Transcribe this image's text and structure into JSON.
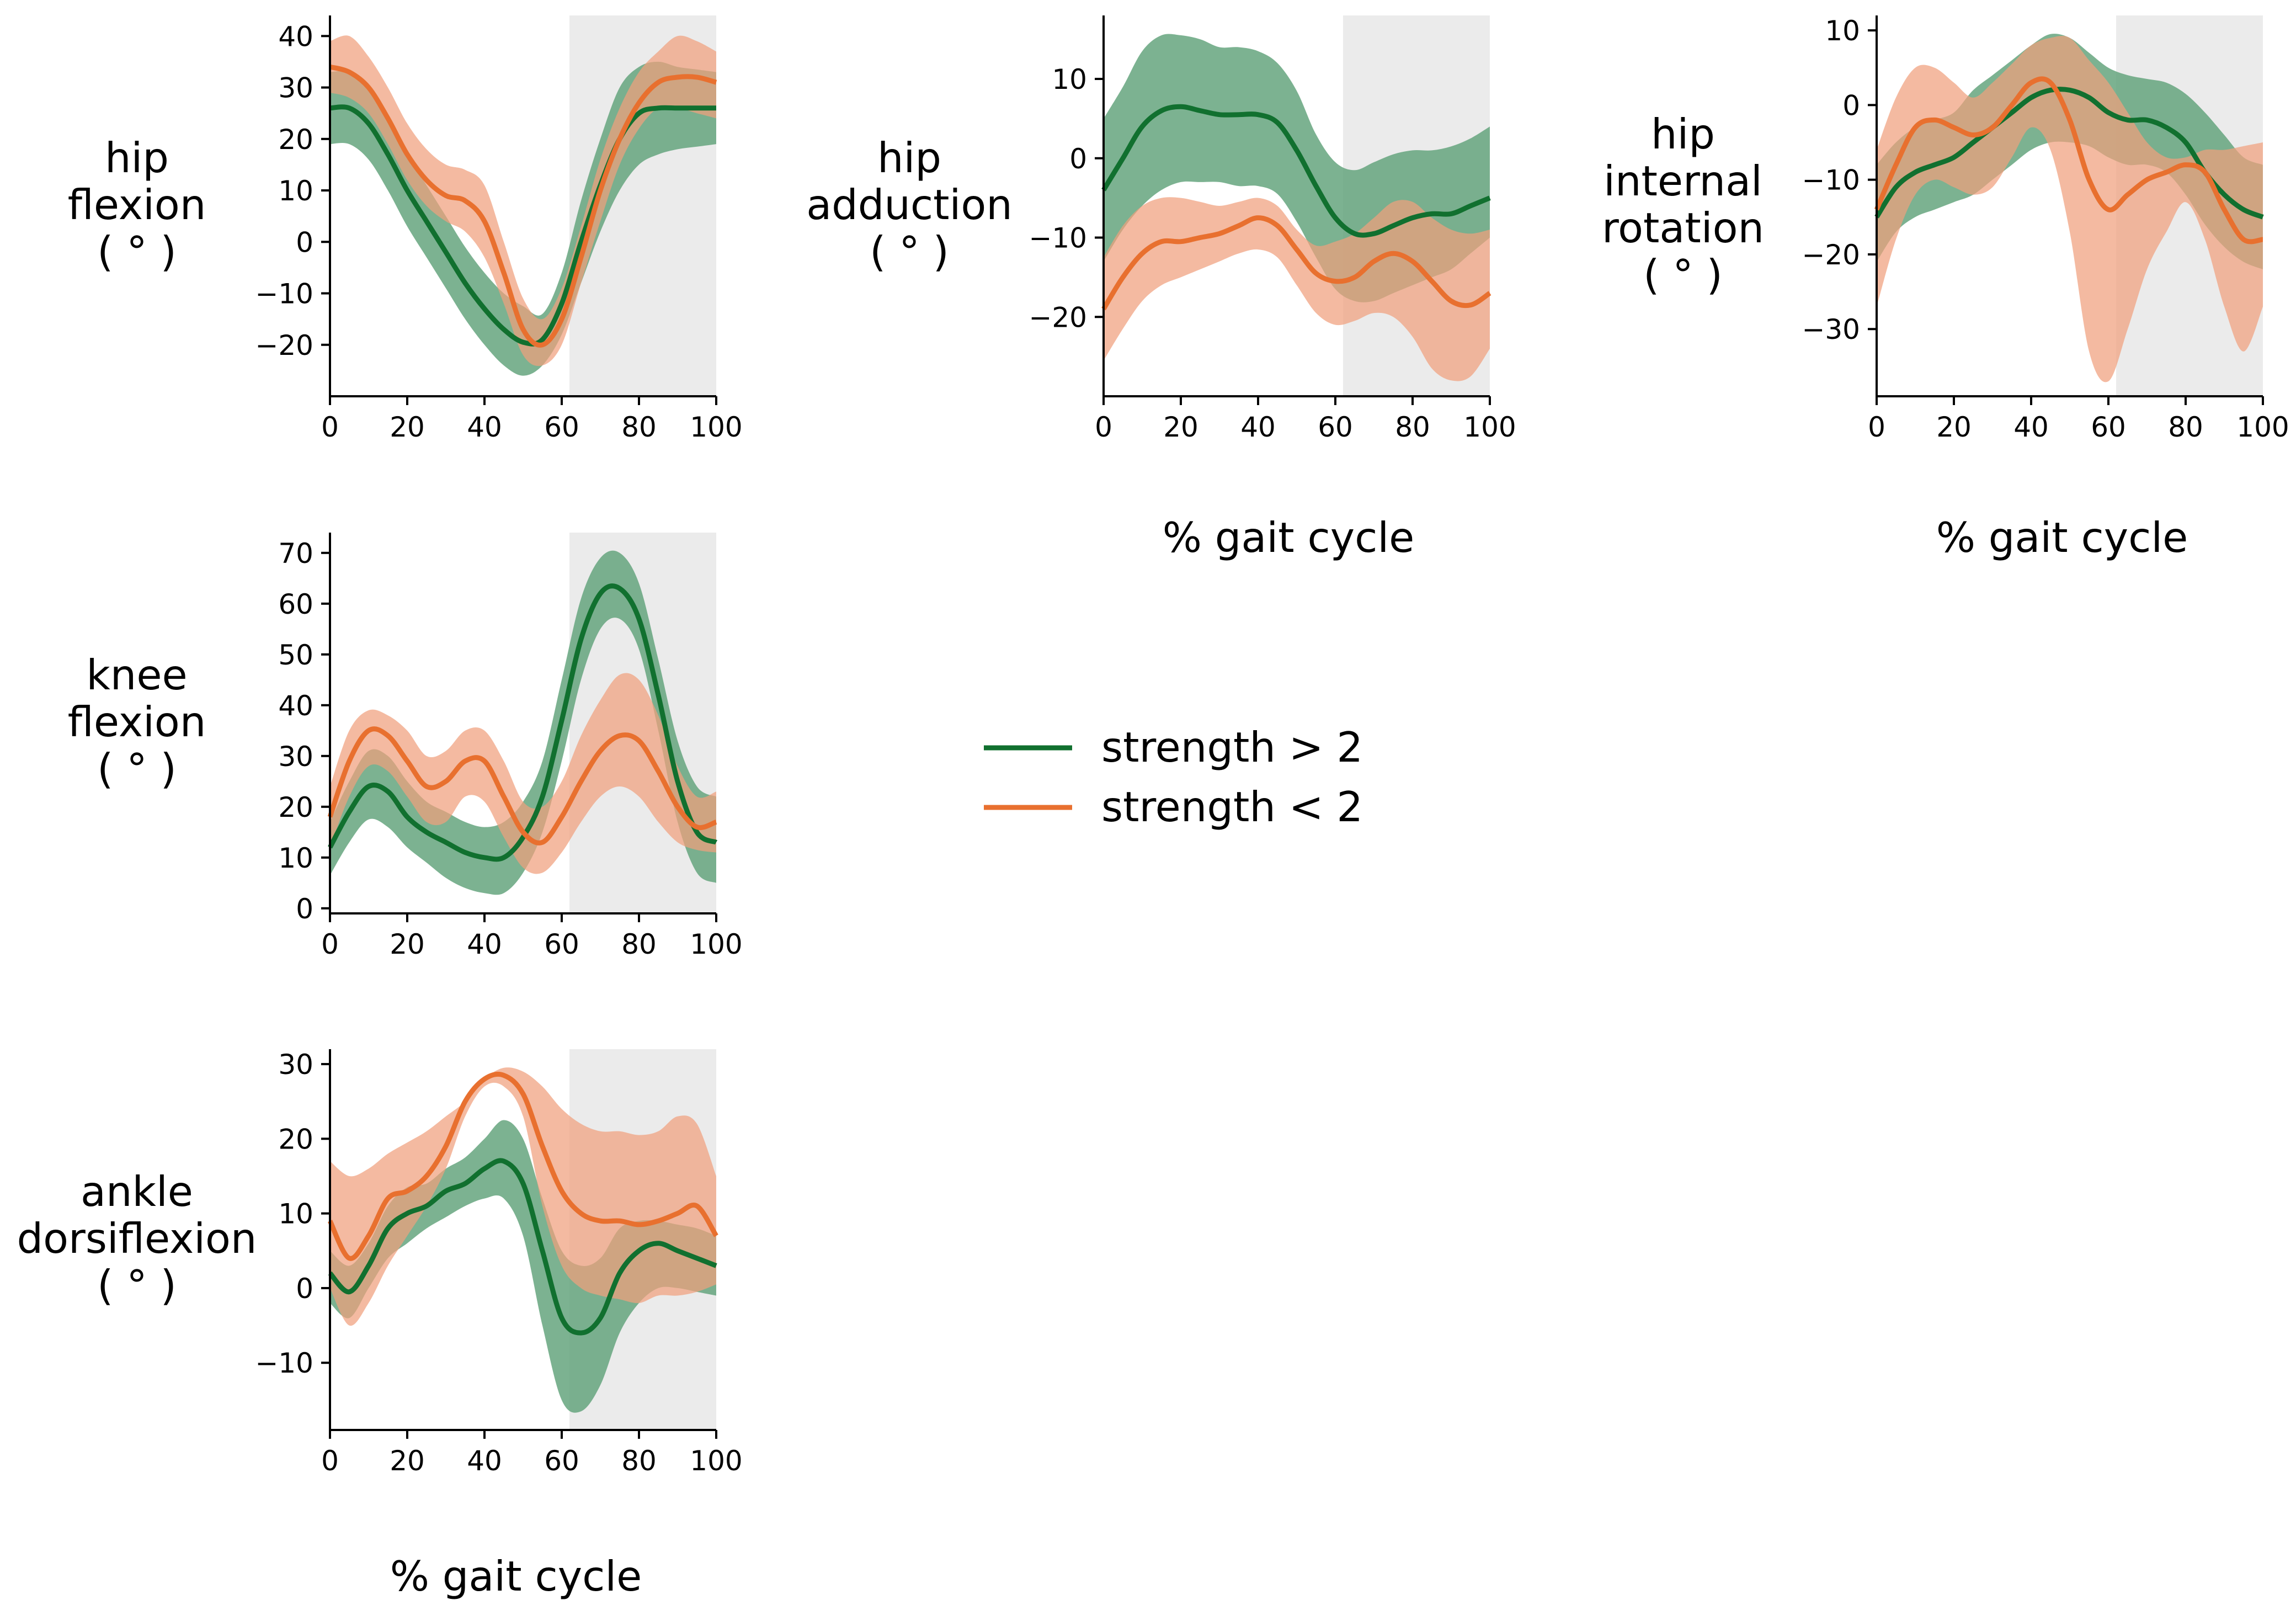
{
  "figure": {
    "xlabel": "% gait cycle",
    "legend": {
      "placement": "center",
      "entries": [
        {
          "label": "strength > 2",
          "color": "#11702f"
        },
        {
          "label": "strength < 2",
          "color": "#e8702f"
        }
      ]
    },
    "colors": {
      "strong_line": "#11702f",
      "strong_band": "#65a57e",
      "weak_line": "#e8702f",
      "weak_band": "#f0a07d",
      "swing_shade": "#ebebeb"
    }
  },
  "chart_data": [
    {
      "type": "line",
      "ylabel": [
        "hip",
        "flexion",
        "( ° )"
      ],
      "xlim": [
        0,
        100
      ],
      "ylim": [
        -30,
        44
      ],
      "xticks": [
        0,
        20,
        40,
        60,
        80,
        100
      ],
      "yticks": [
        -20,
        -10,
        0,
        10,
        20,
        30,
        40
      ],
      "swing_phase_shaded": [
        62,
        100
      ],
      "x": [
        0,
        5,
        10,
        15,
        20,
        25,
        30,
        35,
        40,
        45,
        50,
        55,
        60,
        65,
        70,
        75,
        80,
        85,
        90,
        95,
        100
      ],
      "series": [
        {
          "name": "strength > 2",
          "mean": [
            26,
            26,
            23,
            17,
            10,
            4,
            -2,
            -8,
            -13,
            -17,
            -19.5,
            -19,
            -12,
            0,
            11,
            20,
            25,
            26,
            26,
            26,
            26
          ],
          "lower": [
            19,
            19,
            16,
            10,
            3,
            -3,
            -9,
            -15,
            -20,
            -24,
            -26,
            -24,
            -18,
            -8,
            2,
            10,
            15,
            17,
            18,
            18.5,
            19
          ],
          "upper": [
            33,
            33,
            30,
            24,
            17,
            11,
            5,
            -1,
            -6,
            -10,
            -12.5,
            -14,
            -6,
            8,
            20,
            30,
            34,
            35,
            34,
            33.5,
            33
          ]
        },
        {
          "name": "strength < 2",
          "mean": [
            34,
            33,
            30,
            24,
            17,
            12,
            9,
            8,
            4,
            -6,
            -17,
            -20,
            -15,
            -3,
            10,
            20,
            27,
            31,
            32,
            32,
            31
          ],
          "lower": [
            29,
            28,
            25,
            19,
            12,
            7,
            4,
            2,
            -3,
            -12,
            -22,
            -24,
            -20,
            -8,
            4,
            15,
            22,
            26,
            26,
            25,
            24
          ],
          "upper": [
            39,
            40,
            36,
            30,
            23,
            18,
            15,
            14,
            11,
            0,
            -11,
            -15,
            -9,
            3,
            16,
            26,
            33,
            37,
            40,
            39,
            37
          ]
        }
      ]
    },
    {
      "type": "line",
      "ylabel": [
        "hip",
        "adduction",
        "( ° )"
      ],
      "xlim": [
        0,
        100
      ],
      "ylim": [
        -30,
        18
      ],
      "xticks": [
        0,
        20,
        40,
        60,
        80,
        100
      ],
      "yticks": [
        -20,
        -10,
        0,
        10
      ],
      "swing_phase_shaded": [
        62,
        100
      ],
      "x": [
        0,
        5,
        10,
        15,
        20,
        25,
        30,
        35,
        40,
        45,
        50,
        55,
        60,
        65,
        70,
        75,
        80,
        85,
        90,
        95,
        100
      ],
      "series": [
        {
          "name": "strength > 2",
          "mean": [
            -4,
            0,
            4,
            6,
            6.5,
            6,
            5.5,
            5.5,
            5.5,
            4.5,
            1,
            -3.5,
            -7.5,
            -9.5,
            -9.5,
            -8.5,
            -7.5,
            -7,
            -7,
            -6,
            -5
          ],
          "lower": [
            -13,
            -9,
            -6,
            -4,
            -3,
            -3,
            -3,
            -3.5,
            -3.5,
            -4.5,
            -8,
            -12.5,
            -16.5,
            -18,
            -18,
            -17,
            -16,
            -15,
            -14,
            -12,
            -10
          ],
          "upper": [
            5,
            9,
            13.5,
            15.5,
            15.5,
            15,
            14,
            14,
            13.5,
            12,
            8.5,
            3,
            -0.5,
            -1.5,
            -0.5,
            0.5,
            1,
            1,
            1.5,
            2.5,
            4
          ]
        },
        {
          "name": "strength < 2",
          "mean": [
            -19,
            -15,
            -12,
            -10.5,
            -10.5,
            -10,
            -9.5,
            -8.5,
            -7.5,
            -8.5,
            -11.5,
            -14.5,
            -15.5,
            -15,
            -13,
            -12,
            -13,
            -15.5,
            -18,
            -18.5,
            -17
          ]
        },
        {
          "name": "strength < 2 band",
          "lower": [
            -25.5,
            -21.5,
            -18,
            -16,
            -15,
            -14,
            -13,
            -12,
            -11.5,
            -12.5,
            -16,
            -19.5,
            -21,
            -20.5,
            -19.5,
            -20,
            -22.5,
            -26.5,
            -28,
            -27.5,
            -24
          ],
          "upper": [
            -12.5,
            -8.5,
            -6,
            -5,
            -5,
            -5.5,
            -6,
            -5.5,
            -5,
            -6,
            -9,
            -11,
            -10.5,
            -9.5,
            -7.5,
            -5.5,
            -5.5,
            -7.5,
            -9,
            -9.5,
            -9
          ]
        }
      ]
    },
    {
      "type": "line",
      "ylabel": [
        "hip",
        "internal",
        "rotation",
        "( ° )"
      ],
      "xlim": [
        0,
        100
      ],
      "ylim": [
        -39,
        12
      ],
      "xticks": [
        0,
        20,
        40,
        60,
        80,
        100
      ],
      "yticks": [
        -30,
        -20,
        -10,
        0,
        10
      ],
      "swing_phase_shaded": [
        62,
        100
      ],
      "x": [
        0,
        5,
        10,
        15,
        20,
        25,
        30,
        35,
        40,
        45,
        50,
        55,
        60,
        65,
        70,
        75,
        80,
        85,
        90,
        95,
        100
      ],
      "series": [
        {
          "name": "strength > 2",
          "mean": [
            -15,
            -11,
            -9,
            -8,
            -7,
            -5,
            -3,
            -1,
            1,
            2,
            2,
            1,
            -1,
            -2,
            -2,
            -3,
            -5,
            -9,
            -12,
            -14,
            -15
          ],
          "lower": [
            -21,
            -17,
            -15,
            -14,
            -13,
            -12,
            -10,
            -8,
            -6,
            -5,
            -5,
            -5.5,
            -7,
            -8,
            -8,
            -9,
            -12,
            -16,
            -19,
            -21,
            -22
          ],
          "upper": [
            -8,
            -5,
            -3,
            -2,
            -1,
            2,
            4,
            6,
            8,
            9.5,
            9,
            7,
            5,
            4,
            3.5,
            3,
            1.5,
            -1,
            -4,
            -7,
            -8
          ]
        },
        {
          "name": "strength < 2",
          "mean": [
            -14,
            -8,
            -3,
            -2,
            -3,
            -4,
            -3,
            0,
            3,
            3,
            -2,
            -10,
            -14,
            -12,
            -10,
            -9,
            -8,
            -9,
            -14,
            -18,
            -18
          ]
        },
        {
          "name": "strength < 2 band",
          "lower": [
            -27,
            -18,
            -12,
            -10,
            -11,
            -12,
            -11,
            -7,
            -3,
            -6,
            -17,
            -33,
            -37,
            -30,
            -22,
            -17,
            -13,
            -18,
            -27,
            -33,
            -27
          ],
          "upper": [
            -6,
            1,
            5,
            5,
            3,
            1,
            3,
            5.5,
            8,
            9,
            9,
            6,
            3,
            -1,
            -5,
            -7,
            -7,
            -6,
            -6,
            -5.5,
            -5
          ]
        }
      ]
    },
    {
      "type": "line",
      "ylabel": [
        "knee",
        "flexion",
        "( ° )"
      ],
      "xlim": [
        0,
        100
      ],
      "ylim": [
        -1,
        74
      ],
      "xticks": [
        0,
        20,
        40,
        60,
        80,
        100
      ],
      "yticks": [
        0,
        10,
        20,
        30,
        40,
        50,
        60,
        70
      ],
      "swing_phase_shaded": [
        62,
        100
      ],
      "x": [
        0,
        5,
        10,
        15,
        20,
        25,
        30,
        35,
        40,
        45,
        50,
        55,
        60,
        65,
        70,
        75,
        80,
        85,
        90,
        95,
        100
      ],
      "series": [
        {
          "name": "strength > 2",
          "mean": [
            12,
            19,
            24,
            23,
            18,
            15,
            13,
            11,
            10,
            10,
            14,
            22,
            37,
            53,
            62,
            63,
            57,
            42,
            25,
            15,
            13
          ],
          "lower": [
            6.5,
            13,
            17.5,
            16,
            12,
            9,
            6,
            4,
            3,
            3,
            7,
            15,
            29,
            45,
            55,
            57,
            51,
            35,
            17,
            7,
            5
          ],
          "upper": [
            17,
            25,
            31,
            30,
            25,
            21,
            19,
            17,
            16,
            17,
            21,
            29,
            45,
            61,
            69,
            70,
            64,
            49,
            33,
            24,
            22
          ]
        },
        {
          "name": "strength < 2",
          "mean": [
            18,
            29,
            35,
            34,
            29,
            24,
            25,
            29,
            29,
            22,
            15,
            13,
            18,
            25,
            31,
            34,
            33,
            27,
            20,
            16,
            17
          ]
        },
        {
          "name": "strength < 2 band",
          "lower": [
            12,
            22,
            28,
            27,
            22,
            17,
            17,
            22,
            21,
            14,
            8,
            7,
            11,
            17,
            22,
            24,
            22,
            17,
            13,
            11.5,
            11
          ],
          "upper": [
            24,
            35,
            39,
            38,
            35,
            30,
            31,
            35,
            35,
            29,
            21,
            20,
            25,
            34,
            41,
            46,
            45,
            38,
            28,
            22,
            23
          ]
        }
      ]
    },
    {
      "type": "line",
      "ylabel": [
        "ankle",
        "dorsiflexion",
        "( ° )"
      ],
      "xlim": [
        0,
        100
      ],
      "ylim": [
        -19,
        32
      ],
      "xticks": [
        0,
        20,
        40,
        60,
        80,
        100
      ],
      "yticks": [
        -10,
        0,
        10,
        20,
        30
      ],
      "swing_phase_shaded": [
        62,
        100
      ],
      "x": [
        0,
        5,
        10,
        15,
        20,
        25,
        30,
        35,
        40,
        45,
        50,
        55,
        60,
        65,
        70,
        75,
        80,
        85,
        90,
        95,
        100
      ],
      "series": [
        {
          "name": "strength > 2",
          "mean": [
            2,
            -0.5,
            3,
            8,
            10,
            11,
            13,
            14,
            16,
            17,
            14,
            5,
            -4,
            -6,
            -4,
            2,
            5,
            6,
            5,
            4,
            3
          ],
          "lower": [
            -2,
            -4,
            0,
            4,
            6,
            8,
            9.5,
            11,
            12,
            12,
            7,
            -5,
            -15,
            -16.5,
            -13,
            -6,
            -2,
            0,
            0,
            -0.5,
            -1
          ],
          "upper": [
            5,
            3,
            6,
            11,
            13.5,
            14,
            16,
            17.5,
            20,
            22.5,
            20,
            12,
            5,
            3,
            4,
            8,
            9,
            9,
            8.5,
            8,
            7
          ]
        },
        {
          "name": "strength < 2",
          "mean": [
            9,
            4,
            7,
            12,
            13,
            15,
            19,
            25,
            28,
            28.5,
            26,
            19,
            13,
            10,
            9,
            9,
            8.5,
            9,
            10,
            11,
            7
          ]
        },
        {
          "name": "strength < 2 band",
          "lower": [
            0,
            -5,
            -2,
            3,
            7,
            11,
            16,
            23,
            27,
            27,
            23,
            11,
            3,
            0,
            -1,
            -1.5,
            -2,
            -1,
            -1,
            -0.5,
            0.5
          ]
        },
        {
          "name": "strength < 2 band upper",
          "upper": [
            17,
            15,
            16,
            18,
            19.5,
            21,
            23,
            25,
            28,
            29.5,
            29,
            27,
            24,
            22,
            21,
            21,
            20.5,
            21,
            23,
            22,
            15
          ]
        }
      ]
    }
  ]
}
